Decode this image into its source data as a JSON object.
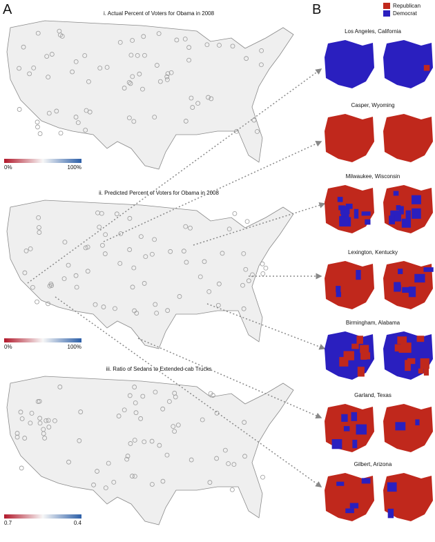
{
  "panels": {
    "a": "A",
    "b": "B"
  },
  "maps": [
    {
      "title": "i. Actual  Percent of Voters for Obama in 2008",
      "scale_low": "0%",
      "scale_high": "100%"
    },
    {
      "title": "ii. Predicted Percent of Voters for Obama in 2008",
      "scale_low": "0%",
      "scale_high": "100%"
    },
    {
      "title": "iii. Ratio of Sedans to Extended-cab Trucks",
      "scale_low": "0.7",
      "scale_high": "0.4"
    }
  ],
  "legend": [
    {
      "name": "Republican",
      "color": "#c0281c"
    },
    {
      "name": "Democrat",
      "color": "#2a1fbf"
    }
  ],
  "cities": [
    "Los Angeles, California",
    "Casper, Wyoming",
    "Milwaukee, Wisconsin",
    "Lexington, Kentucky",
    "Birmingham, Alabama",
    "Garland, Texas",
    "Gilbert, Arizona"
  ]
}
